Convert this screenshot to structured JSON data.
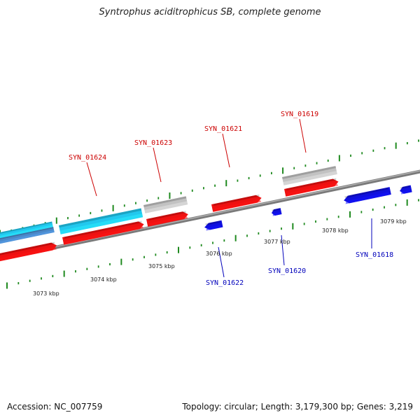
{
  "title": "Syntrophus aciditrophicus SB, complete genome",
  "accession": "Accession: NC_007759",
  "summary": "Topology: circular; Length: 3,179,300 bp; Genes: 3,219",
  "colors": {
    "forward_cds": "#ee1111",
    "reverse_cds": "#1010dd",
    "cyan_feature": "#22c8ee",
    "steel_feature": "#4a88c8",
    "gray_feature": "#c2c2c2",
    "backbone": "#888888",
    "ticks": "#1f8a1f",
    "label_red": "#cc0000",
    "label_blue": "#0000bb"
  },
  "scale_labels": [
    {
      "text": "3073 kbp",
      "kbp": 3073
    },
    {
      "text": "3074 kbp",
      "kbp": 3074
    },
    {
      "text": "3075 kbp",
      "kbp": 3075
    },
    {
      "text": "3076 kbp",
      "kbp": 3076
    },
    {
      "text": "3077 kbp",
      "kbp": 3077
    },
    {
      "text": "3078 kbp",
      "kbp": 3078
    },
    {
      "text": "3079 kbp",
      "kbp": 3079
    }
  ],
  "gene_labels_forward": [
    {
      "text": "SYN_01624"
    },
    {
      "text": "SYN_01623"
    },
    {
      "text": "SYN_01621"
    },
    {
      "text": "SYN_01619"
    }
  ],
  "gene_labels_reverse": [
    {
      "text": "SYN_01622"
    },
    {
      "text": "SYN_01620"
    },
    {
      "text": "SYN_01618"
    }
  ]
}
